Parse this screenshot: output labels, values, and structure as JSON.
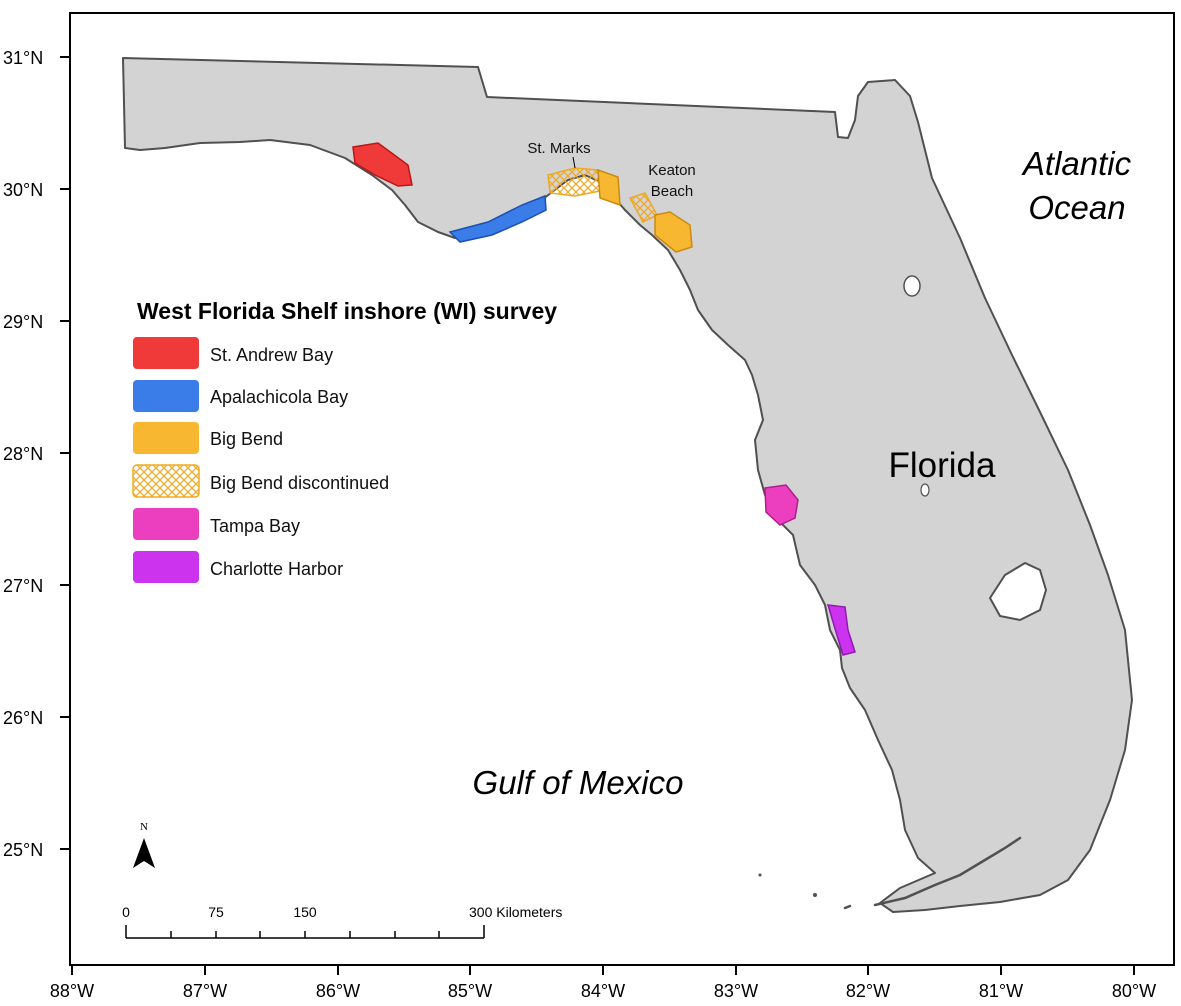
{
  "map": {
    "lat_labels": [
      "31°N",
      "30°N",
      "29°N",
      "28°N",
      "27°N",
      "26°N",
      "25°N"
    ],
    "lon_labels": [
      "88°W",
      "87°W",
      "86°W",
      "85°W",
      "84°W",
      "83°W",
      "82°W",
      "81°W",
      "80°W"
    ],
    "place_labels": {
      "atlantic_line1": "Atlantic",
      "atlantic_line2": "Ocean",
      "gulf": "Gulf of Mexico",
      "florida": "Florida",
      "st_marks": "St. Marks",
      "keaton_line1": "Keaton",
      "keaton_line2": "Beach"
    },
    "legend": {
      "title": "West Florida Shelf inshore (WI) survey",
      "items": [
        {
          "label": "St. Andrew Bay",
          "color": "#f03a3a",
          "pattern": "solid"
        },
        {
          "label": "Apalachicola Bay",
          "color": "#3a7de8",
          "pattern": "solid"
        },
        {
          "label": "Big Bend",
          "color": "#f7b731",
          "pattern": "solid"
        },
        {
          "label": "Big Bend discontinued",
          "color": "#f7b731",
          "pattern": "hatch"
        },
        {
          "label": "Tampa Bay",
          "color": "#ec3fc0",
          "pattern": "solid"
        },
        {
          "label": "Charlotte Harbor",
          "color": "#cc33ee",
          "pattern": "solid"
        }
      ]
    },
    "north_arrow": {
      "label": "N"
    },
    "scale_bar": {
      "labels": [
        "0",
        "75",
        "150",
        "300 Kilometers"
      ]
    },
    "colors": {
      "land": "#d3d3d3",
      "coast": "#505050",
      "water": "#ffffff"
    }
  }
}
